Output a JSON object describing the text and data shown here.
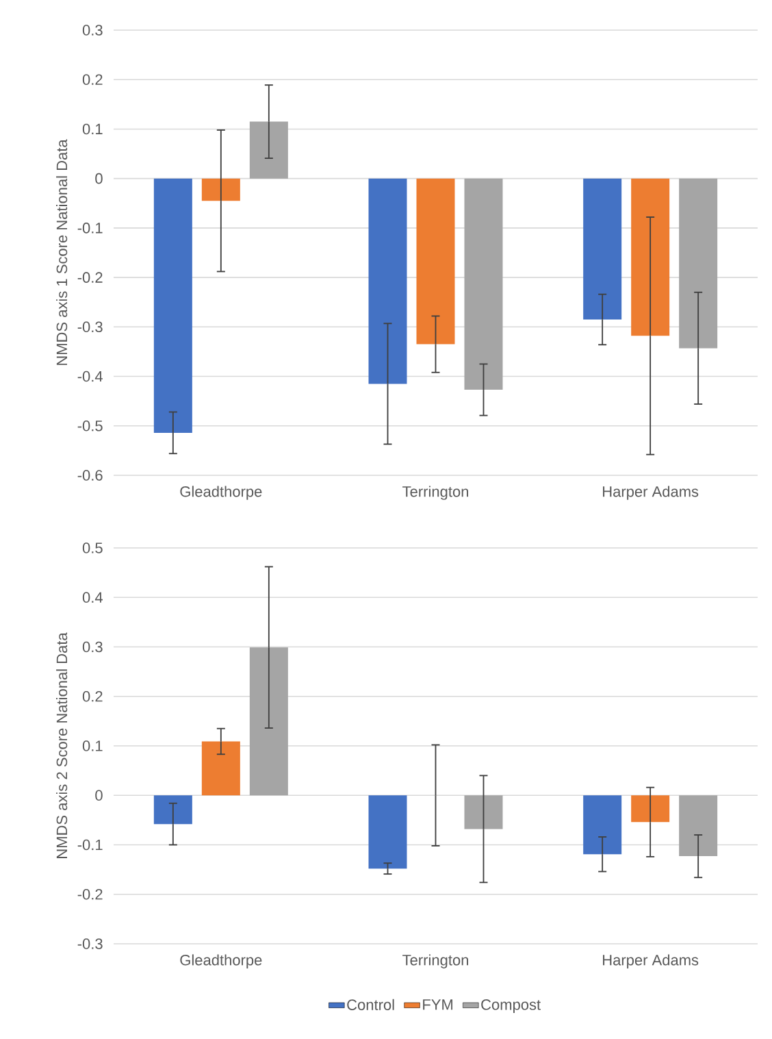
{
  "chart_data": [
    {
      "type": "bar",
      "ylabel": "NMDS axis 1 Score National Data",
      "categories": [
        "Gleadthorpe",
        "Terrington",
        "Harper Adams"
      ],
      "ylim": [
        -0.6,
        0.3
      ],
      "yticks": [
        -0.6,
        -0.5,
        -0.4,
        -0.3,
        -0.2,
        -0.1,
        0,
        0.1,
        0.2,
        0.3
      ],
      "grid": "y",
      "legend": false,
      "series": [
        {
          "color": "#4472c4",
          "values": [
            -0.514,
            -0.415,
            -0.285
          ],
          "errors": [
            0.042,
            0.122,
            0.051
          ]
        },
        {
          "color": "#ed7d31",
          "values": [
            -0.045,
            -0.335,
            -0.318
          ],
          "errors": [
            0.143,
            0.057,
            0.24
          ]
        },
        {
          "color": "#a5a5a5",
          "values": [
            0.115,
            -0.427,
            -0.343
          ],
          "errors": [
            0.074,
            0.052,
            0.113
          ]
        }
      ]
    },
    {
      "type": "bar",
      "ylabel": "NMDS axis 2 Score National Data",
      "categories": [
        "Gleadthorpe",
        "Terrington",
        "Harper Adams"
      ],
      "ylim": [
        -0.3,
        0.5
      ],
      "yticks": [
        -0.3,
        -0.2,
        -0.1,
        0,
        0.1,
        0.2,
        0.3,
        0.4,
        0.5
      ],
      "grid": "y",
      "legend": "bottom",
      "series": [
        {
          "name": "Control",
          "color": "#4472c4",
          "values": [
            -0.058,
            -0.148,
            -0.119
          ],
          "errors": [
            0.042,
            0.011,
            0.035
          ]
        },
        {
          "name": "FYM",
          "color": "#ed7d31",
          "values": [
            0.109,
            0,
            -0.054
          ],
          "errors": [
            0.026,
            0.102,
            0.07
          ]
        },
        {
          "name": "Compost",
          "color": "#a5a5a5",
          "values": [
            0.299,
            -0.068,
            -0.123
          ],
          "errors": [
            0.163,
            0.108,
            0.043
          ]
        }
      ]
    }
  ]
}
